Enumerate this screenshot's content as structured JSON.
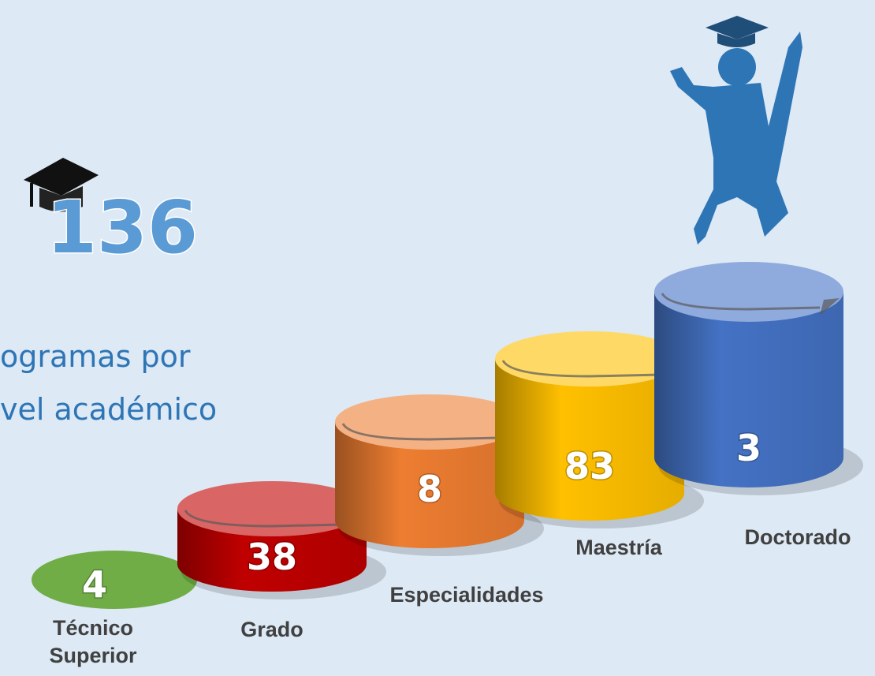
{
  "total": "136",
  "subtitle": [
    "ogramas por",
    "vel académico"
  ],
  "levels": [
    {
      "label": [
        "Técnico",
        "Superior"
      ],
      "value": "4"
    },
    {
      "label": [
        "Grado"
      ],
      "value": "38"
    },
    {
      "label": [
        "Especialidades"
      ],
      "value": "8"
    },
    {
      "label": [
        "Maestría"
      ],
      "value": "83"
    },
    {
      "label": [
        "Doctorado"
      ],
      "value": "3"
    }
  ]
}
